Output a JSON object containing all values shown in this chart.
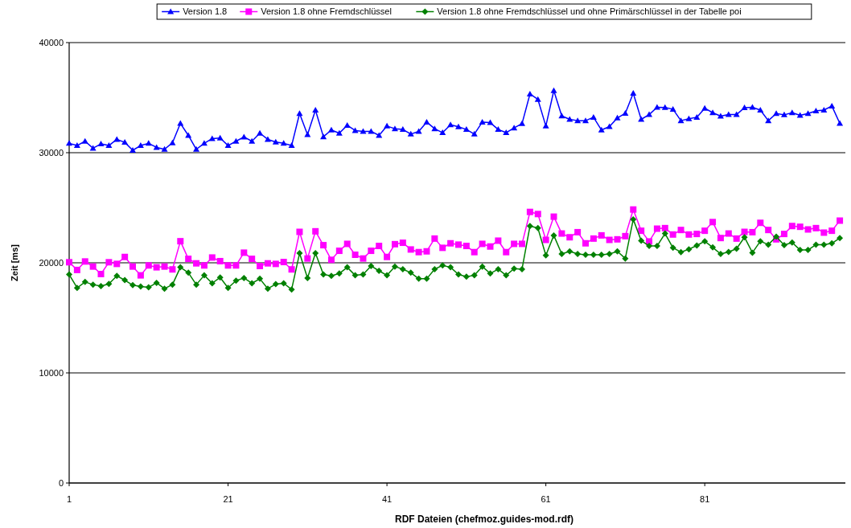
{
  "chart_data": {
    "type": "line",
    "xlabel": "RDF Dateien (chefmoz.guides-mod.rdf)",
    "ylabel": "Zeit [ms]",
    "x": [
      1,
      2,
      3,
      4,
      5,
      6,
      7,
      8,
      9,
      10,
      11,
      12,
      13,
      14,
      15,
      16,
      17,
      18,
      19,
      20,
      21,
      22,
      23,
      24,
      25,
      26,
      27,
      28,
      29,
      30,
      31,
      32,
      33,
      34,
      35,
      36,
      37,
      38,
      39,
      40,
      41,
      42,
      43,
      44,
      45,
      46,
      47,
      48,
      49,
      50,
      51,
      52,
      53,
      54,
      55,
      56,
      57,
      58,
      59,
      60,
      61,
      62,
      63,
      64,
      65,
      66,
      67,
      68,
      69,
      70,
      71,
      72,
      73,
      74,
      75,
      76,
      77,
      78,
      79,
      80,
      81,
      82,
      83,
      84,
      85,
      86,
      87,
      88,
      89,
      90,
      91,
      92,
      93,
      94,
      95,
      96,
      97,
      98
    ],
    "xlim": [
      1,
      98.7
    ],
    "xticks": [
      1,
      21,
      41,
      61,
      81
    ],
    "ylim": [
      0,
      40000
    ],
    "yticks": [
      0,
      10000,
      20000,
      30000,
      40000
    ],
    "grid": "y",
    "legend": "top",
    "line_style": "solid",
    "series": [
      {
        "name": "Version 1.8",
        "color": "#0000ff",
        "marker": "triangle",
        "values": [
          30850,
          30650,
          31040,
          30410,
          30800,
          30650,
          31210,
          30940,
          30220,
          30650,
          30850,
          30480,
          30310,
          30900,
          32660,
          31570,
          30310,
          30850,
          31280,
          31330,
          30650,
          31040,
          31430,
          31040,
          31770,
          31210,
          30970,
          30850,
          30650,
          33560,
          31650,
          33870,
          31450,
          32060,
          31770,
          32490,
          32010,
          31940,
          31940,
          31570,
          32420,
          32180,
          32110,
          31690,
          31940,
          32780,
          32180,
          31820,
          32540,
          32350,
          32110,
          31690,
          32780,
          32730,
          32110,
          31820,
          32250,
          32640,
          35330,
          34840,
          32420,
          35640,
          33340,
          33030,
          32910,
          32910,
          33220,
          32060,
          32370,
          33150,
          33580,
          35400,
          33030,
          33460,
          34120,
          34100,
          33950,
          32910,
          33080,
          33220,
          34040,
          33630,
          33320,
          33460,
          33460,
          34090,
          34120,
          33870,
          32910,
          33560,
          33440,
          33630,
          33390,
          33560,
          33800,
          33870,
          34240,
          32660
        ]
      },
      {
        "name": "Version 1.8 ohne Fremdschlüssel",
        "color": "#ff00ff",
        "marker": "square",
        "values": [
          20050,
          19350,
          20120,
          19660,
          18980,
          20050,
          19900,
          20530,
          19660,
          18860,
          19760,
          19590,
          19660,
          19400,
          21960,
          20360,
          19950,
          19760,
          20480,
          20150,
          19760,
          19760,
          20920,
          20360,
          19710,
          19950,
          19900,
          20070,
          19400,
          22810,
          20390,
          22860,
          21600,
          20270,
          21090,
          21720,
          20730,
          20390,
          21090,
          21530,
          20530,
          21690,
          21820,
          21210,
          20970,
          21040,
          22200,
          21360,
          21770,
          21650,
          21530,
          20970,
          21720,
          21480,
          22010,
          20970,
          21720,
          21720,
          24620,
          24430,
          22080,
          24190,
          22660,
          22320,
          22780,
          21770,
          22200,
          22490,
          22080,
          22130,
          22420,
          24840,
          22910,
          21940,
          23100,
          23150,
          22570,
          22980,
          22570,
          22620,
          22910,
          23700,
          22250,
          22660,
          22200,
          22810,
          22780,
          23630,
          22980,
          22130,
          22620,
          23340,
          23270,
          23030,
          23150,
          22740,
          22910,
          23830
        ]
      },
      {
        "name": "Version 1.8 ohne Fremdschlüssel und ohne Primärschlüssel in der Tabelle poi",
        "color": "#008000",
        "marker": "diamond",
        "values": [
          18940,
          17720,
          18260,
          18020,
          17890,
          18090,
          18810,
          18430,
          17970,
          17850,
          17770,
          18180,
          17650,
          18020,
          19590,
          19100,
          18020,
          18860,
          18140,
          18670,
          17720,
          18380,
          18620,
          18140,
          18550,
          17650,
          18060,
          18140,
          17580,
          20870,
          18620,
          20870,
          18940,
          18810,
          19030,
          19590,
          18860,
          18940,
          19710,
          19270,
          18860,
          19660,
          19420,
          19100,
          18550,
          18550,
          19420,
          19760,
          19590,
          18940,
          18740,
          18860,
          19660,
          19030,
          19420,
          18860,
          19470,
          19420,
          23340,
          23150,
          20680,
          22490,
          20800,
          21040,
          20800,
          20730,
          20730,
          20730,
          20800,
          21040,
          20390,
          23950,
          22010,
          21530,
          21530,
          22660,
          21360,
          20970,
          21230,
          21570,
          21960,
          21400,
          20800,
          20990,
          21280,
          22320,
          20920,
          21960,
          21650,
          22370,
          21600,
          21840,
          21160,
          21160,
          21650,
          21650,
          21770,
          22250
        ]
      }
    ]
  }
}
